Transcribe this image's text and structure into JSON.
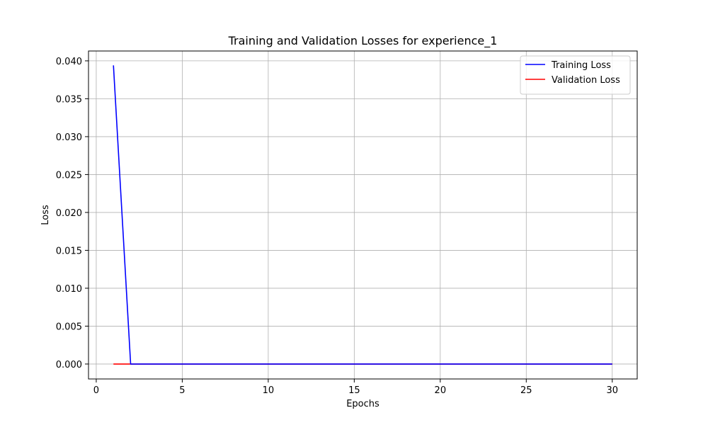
{
  "chart_data": {
    "type": "line",
    "title": "Training and Validation Losses for experience_1",
    "xlabel": "Epochs",
    "ylabel": "Loss",
    "xlim": [
      -0.45,
      31.45
    ],
    "ylim": [
      -0.00197,
      0.0413
    ],
    "xticks": [
      0,
      5,
      10,
      15,
      20,
      25,
      30
    ],
    "yticks": [
      0.0,
      0.005,
      0.01,
      0.015,
      0.02,
      0.025,
      0.03,
      0.035,
      0.04
    ],
    "ytick_labels": [
      "0.000",
      "0.005",
      "0.010",
      "0.015",
      "0.020",
      "0.025",
      "0.030",
      "0.035",
      "0.040"
    ],
    "grid": true,
    "legend_position": "top-right",
    "x": [
      1,
      2,
      3,
      4,
      5,
      6,
      7,
      8,
      9,
      10,
      11,
      12,
      13,
      14,
      15,
      16,
      17,
      18,
      19,
      20,
      21,
      22,
      23,
      24,
      25,
      26,
      27,
      28,
      29,
      30
    ],
    "series": [
      {
        "name": "Training Loss",
        "color": "#0000ff",
        "values": [
          0.0394,
          0.0,
          0.0,
          0.0,
          0.0,
          0.0,
          0.0,
          0.0,
          0.0,
          0.0,
          0.0,
          0.0,
          0.0,
          0.0,
          0.0,
          0.0,
          0.0,
          0.0,
          0.0,
          0.0,
          0.0,
          0.0,
          0.0,
          0.0,
          0.0,
          0.0,
          0.0,
          0.0,
          0.0,
          0.0
        ]
      },
      {
        "name": "Validation Loss",
        "color": "#ff0000",
        "values": [
          0.0,
          0.0,
          0.0,
          0.0,
          0.0,
          0.0,
          0.0,
          0.0,
          0.0,
          0.0,
          0.0,
          0.0,
          0.0,
          0.0,
          0.0,
          0.0,
          0.0,
          0.0,
          0.0,
          0.0,
          0.0,
          0.0,
          0.0,
          0.0,
          0.0,
          0.0,
          0.0,
          0.0,
          0.0,
          0.0
        ]
      }
    ]
  }
}
